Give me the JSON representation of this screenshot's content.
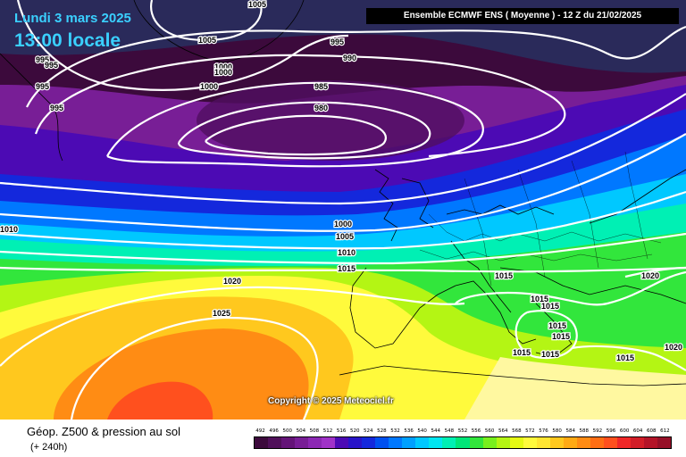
{
  "header": {
    "date": "Lundi 3 mars 2025",
    "local_time": "13:00 locale",
    "model_run": "Ensemble ECMWF ENS  ( Moyenne )  -  12 Z du 21/02/2025"
  },
  "copyright": "Copyright © 2025 Meteociel.fr",
  "legend": {
    "title": "Géop. Z500 & pression au sol",
    "lead": "(+ 240h)",
    "levels": [
      "492",
      "496",
      "500",
      "504",
      "508",
      "512",
      "516",
      "520",
      "524",
      "528",
      "532",
      "536",
      "540",
      "544",
      "548",
      "552",
      "556",
      "560",
      "564",
      "568",
      "572",
      "576",
      "580",
      "584",
      "588",
      "592",
      "596",
      "600",
      "604",
      "608",
      "612"
    ],
    "colors": [
      "#3c0a3c",
      "#50105a",
      "#641478",
      "#781e96",
      "#8c28b4",
      "#a032c8",
      "#4c0ab4",
      "#2814c8",
      "#1428dc",
      "#0050f0",
      "#0078ff",
      "#00a0ff",
      "#00c8ff",
      "#00e6f0",
      "#00f0b4",
      "#00e678",
      "#32e63c",
      "#78f01e",
      "#b4f514",
      "#e6fa14",
      "#fffa3c",
      "#ffe632",
      "#ffc81e",
      "#ffaa14",
      "#ff8c14",
      "#ff6e14",
      "#ff501e",
      "#f02828",
      "#d21e28",
      "#b41428",
      "#961028"
    ]
  },
  "isobar_labels": [
    "1005",
    "1005",
    "995",
    "990",
    "985",
    "980",
    "1000",
    "1000",
    "1000",
    "995",
    "995",
    "995",
    "995",
    "1010",
    "1000",
    "1005",
    "1010",
    "1015",
    "1020",
    "1025",
    "1015",
    "1015",
    "1015",
    "1015",
    "1015",
    "1015",
    "1015",
    "1020",
    "1020",
    "1015"
  ]
}
